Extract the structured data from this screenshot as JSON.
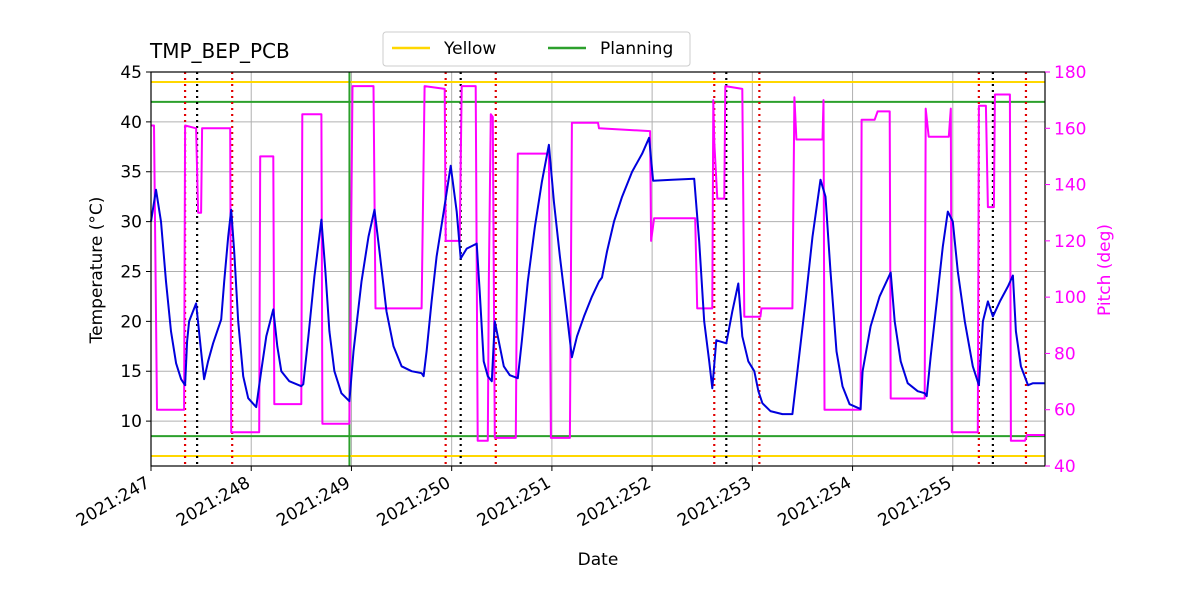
{
  "chart_data": {
    "type": "line",
    "title": "TMP_BEP_PCB",
    "xlabel": "Date",
    "ylabel": "Temperature (°C)",
    "y2label": "Pitch (deg)",
    "xlim": [
      247.0,
      255.92
    ],
    "ylim": [
      5.5,
      45
    ],
    "y2lim": [
      40,
      180
    ],
    "grid": true,
    "legend_placement": "top-center",
    "x_ticks": [
      {
        "value": 247,
        "label": "2021:247"
      },
      {
        "value": 248,
        "label": "2021:248"
      },
      {
        "value": 249,
        "label": "2021:249"
      },
      {
        "value": 250,
        "label": "2021:250"
      },
      {
        "value": 251,
        "label": "2021:251"
      },
      {
        "value": 252,
        "label": "2021:252"
      },
      {
        "value": 253,
        "label": "2021:253"
      },
      {
        "value": 254,
        "label": "2021:254"
      },
      {
        "value": 255,
        "label": "2021:255"
      }
    ],
    "y_ticks": [
      10,
      15,
      20,
      25,
      30,
      35,
      40,
      45
    ],
    "y2_ticks": [
      40,
      60,
      80,
      100,
      120,
      140,
      160,
      180
    ],
    "limit_lines": [
      {
        "name": "Yellow",
        "values": [
          6.5,
          44.0
        ],
        "color": "#ffd700"
      },
      {
        "name": "Planning",
        "values": [
          8.5,
          42.0
        ],
        "color": "#2ca02c"
      }
    ],
    "planning_vline": {
      "x": 248.98,
      "color": "#2ca02c"
    },
    "red_dotted_lines": [
      247.34,
      247.81,
      249.94,
      250.44,
      252.62,
      253.07,
      255.26,
      255.73
    ],
    "black_dotted_lines": [
      247.46,
      250.09,
      252.74,
      255.4
    ],
    "series": [
      {
        "name": "TMP_BEP_PCB",
        "axis": "left",
        "color": "#0000dd",
        "points": [
          [
            247.0,
            30.0
          ],
          [
            247.05,
            33.2
          ],
          [
            247.1,
            30.0
          ],
          [
            247.15,
            24.0
          ],
          [
            247.2,
            19.0
          ],
          [
            247.25,
            15.8
          ],
          [
            247.3,
            14.2
          ],
          [
            247.34,
            13.6
          ],
          [
            247.36,
            18.0
          ],
          [
            247.38,
            20.0
          ],
          [
            247.45,
            21.8
          ],
          [
            247.5,
            17.0
          ],
          [
            247.53,
            14.2
          ],
          [
            247.57,
            16.0
          ],
          [
            247.62,
            17.8
          ],
          [
            247.7,
            20.2
          ],
          [
            247.73,
            24.0
          ],
          [
            247.77,
            28.5
          ],
          [
            247.8,
            31.2
          ],
          [
            247.83,
            27.0
          ],
          [
            247.87,
            20.0
          ],
          [
            247.92,
            14.5
          ],
          [
            247.97,
            12.3
          ],
          [
            248.05,
            11.4
          ],
          [
            248.1,
            15.0
          ],
          [
            248.15,
            18.5
          ],
          [
            248.22,
            21.2
          ],
          [
            248.26,
            17.5
          ],
          [
            248.3,
            15.0
          ],
          [
            248.38,
            14.0
          ],
          [
            248.5,
            13.5
          ],
          [
            248.52,
            13.7
          ],
          [
            248.57,
            18.5
          ],
          [
            248.63,
            24.5
          ],
          [
            248.7,
            30.2
          ],
          [
            248.74,
            25.0
          ],
          [
            248.78,
            19.0
          ],
          [
            248.83,
            15.0
          ],
          [
            248.9,
            12.8
          ],
          [
            248.98,
            12.0
          ],
          [
            249.02,
            17.0
          ],
          [
            249.1,
            24.0
          ],
          [
            249.17,
            28.5
          ],
          [
            249.23,
            31.2
          ],
          [
            249.28,
            27.0
          ],
          [
            249.35,
            21.0
          ],
          [
            249.42,
            17.5
          ],
          [
            249.5,
            15.5
          ],
          [
            249.6,
            15.0
          ],
          [
            249.7,
            14.8
          ],
          [
            249.72,
            14.5
          ],
          [
            249.75,
            17.0
          ],
          [
            249.8,
            22.0
          ],
          [
            249.85,
            26.5
          ],
          [
            249.92,
            31.0
          ],
          [
            249.99,
            35.6
          ],
          [
            250.05,
            31.0
          ],
          [
            250.09,
            26.3
          ],
          [
            250.15,
            27.3
          ],
          [
            250.25,
            27.8
          ],
          [
            250.28,
            23.0
          ],
          [
            250.32,
            16.0
          ],
          [
            250.36,
            14.5
          ],
          [
            250.4,
            14.0
          ],
          [
            250.43,
            20.0
          ],
          [
            250.47,
            18.0
          ],
          [
            250.52,
            15.5
          ],
          [
            250.58,
            14.6
          ],
          [
            250.66,
            14.3
          ],
          [
            250.7,
            18.0
          ],
          [
            250.76,
            24.0
          ],
          [
            250.83,
            29.5
          ],
          [
            250.9,
            34.0
          ],
          [
            250.97,
            37.7
          ],
          [
            251.02,
            32.0
          ],
          [
            251.08,
            26.5
          ],
          [
            251.14,
            21.5
          ],
          [
            251.2,
            16.4
          ],
          [
            251.25,
            18.5
          ],
          [
            251.32,
            20.5
          ],
          [
            251.4,
            22.5
          ],
          [
            251.47,
            24.0
          ],
          [
            251.5,
            24.4
          ],
          [
            251.55,
            27.0
          ],
          [
            251.62,
            30.0
          ],
          [
            251.7,
            32.5
          ],
          [
            251.8,
            35.0
          ],
          [
            251.9,
            36.8
          ],
          [
            251.97,
            38.4
          ],
          [
            252.01,
            34.1
          ],
          [
            252.2,
            34.2
          ],
          [
            252.42,
            34.3
          ],
          [
            252.47,
            28.0
          ],
          [
            252.52,
            20.0
          ],
          [
            252.57,
            16.0
          ],
          [
            252.6,
            13.3
          ],
          [
            252.64,
            18.1
          ],
          [
            252.74,
            17.8
          ],
          [
            252.8,
            21.0
          ],
          [
            252.86,
            23.8
          ],
          [
            252.9,
            18.5
          ],
          [
            252.96,
            16.0
          ],
          [
            253.02,
            15.0
          ],
          [
            253.06,
            13.0
          ],
          [
            253.1,
            11.8
          ],
          [
            253.18,
            11.0
          ],
          [
            253.3,
            10.7
          ],
          [
            253.4,
            10.7
          ],
          [
            253.45,
            15.0
          ],
          [
            253.53,
            22.0
          ],
          [
            253.6,
            28.5
          ],
          [
            253.68,
            34.2
          ],
          [
            253.73,
            32.5
          ],
          [
            253.78,
            25.0
          ],
          [
            253.84,
            17.0
          ],
          [
            253.9,
            13.5
          ],
          [
            253.97,
            11.7
          ],
          [
            254.08,
            11.2
          ],
          [
            254.1,
            15.0
          ],
          [
            254.18,
            19.5
          ],
          [
            254.27,
            22.5
          ],
          [
            254.38,
            24.9
          ],
          [
            254.42,
            20.0
          ],
          [
            254.48,
            16.0
          ],
          [
            254.55,
            13.8
          ],
          [
            254.65,
            13.0
          ],
          [
            254.72,
            12.8
          ],
          [
            254.74,
            12.5
          ],
          [
            254.78,
            16.5
          ],
          [
            254.84,
            22.0
          ],
          [
            254.9,
            27.5
          ],
          [
            254.95,
            31.0
          ],
          [
            255.0,
            30.0
          ],
          [
            255.05,
            25.0
          ],
          [
            255.12,
            20.0
          ],
          [
            255.2,
            15.5
          ],
          [
            255.26,
            13.6
          ],
          [
            255.3,
            20.0
          ],
          [
            255.35,
            22.0
          ],
          [
            255.4,
            20.5
          ],
          [
            255.47,
            22.0
          ],
          [
            255.55,
            23.5
          ],
          [
            255.6,
            24.6
          ],
          [
            255.63,
            19.0
          ],
          [
            255.68,
            15.5
          ],
          [
            255.75,
            13.6
          ],
          [
            255.8,
            13.8
          ],
          [
            255.92,
            13.8
          ]
        ]
      },
      {
        "name": "Pitch",
        "axis": "right",
        "color": "#ff00ff",
        "points": [
          [
            247.0,
            161
          ],
          [
            247.03,
            161
          ],
          [
            247.06,
            60
          ],
          [
            247.33,
            60
          ],
          [
            247.34,
            161
          ],
          [
            247.45,
            160
          ],
          [
            247.47,
            130
          ],
          [
            247.5,
            130
          ],
          [
            247.51,
            160
          ],
          [
            247.79,
            160
          ],
          [
            247.8,
            52
          ],
          [
            248.08,
            52
          ],
          [
            248.09,
            150
          ],
          [
            248.22,
            150
          ],
          [
            248.23,
            62
          ],
          [
            248.5,
            62
          ],
          [
            248.51,
            165
          ],
          [
            248.7,
            165
          ],
          [
            248.71,
            55
          ],
          [
            248.98,
            55
          ],
          [
            249.01,
            175
          ],
          [
            249.22,
            175
          ],
          [
            249.24,
            96
          ],
          [
            249.7,
            96
          ],
          [
            249.73,
            175
          ],
          [
            249.93,
            174
          ],
          [
            249.94,
            120
          ],
          [
            250.08,
            120
          ],
          [
            250.1,
            175
          ],
          [
            250.24,
            175
          ],
          [
            250.26,
            49
          ],
          [
            250.36,
            49
          ],
          [
            250.37,
            105
          ],
          [
            250.39,
            165
          ],
          [
            250.41,
            164
          ],
          [
            250.43,
            50
          ],
          [
            250.64,
            50
          ],
          [
            250.66,
            151
          ],
          [
            250.97,
            151
          ],
          [
            250.99,
            50
          ],
          [
            251.18,
            50
          ],
          [
            251.2,
            162
          ],
          [
            251.46,
            162
          ],
          [
            251.47,
            160
          ],
          [
            251.98,
            159
          ],
          [
            251.99,
            120
          ],
          [
            252.02,
            128
          ],
          [
            252.43,
            128
          ],
          [
            252.45,
            96
          ],
          [
            252.6,
            96
          ],
          [
            252.61,
            170
          ],
          [
            252.62,
            155
          ],
          [
            252.65,
            135
          ],
          [
            252.72,
            135
          ],
          [
            252.73,
            175
          ],
          [
            252.9,
            174
          ],
          [
            252.92,
            93
          ],
          [
            253.08,
            93
          ],
          [
            253.09,
            96
          ],
          [
            253.4,
            96
          ],
          [
            253.42,
            171
          ],
          [
            253.44,
            156
          ],
          [
            253.7,
            156
          ],
          [
            253.71,
            170
          ],
          [
            253.72,
            60
          ],
          [
            254.08,
            60
          ],
          [
            254.09,
            163
          ],
          [
            254.22,
            163
          ],
          [
            254.25,
            166
          ],
          [
            254.37,
            166
          ],
          [
            254.38,
            64
          ],
          [
            254.72,
            64
          ],
          [
            254.73,
            167
          ],
          [
            254.76,
            157
          ],
          [
            254.96,
            157
          ],
          [
            254.98,
            167
          ],
          [
            254.99,
            52
          ],
          [
            255.25,
            52
          ],
          [
            255.26,
            168
          ],
          [
            255.33,
            168
          ],
          [
            255.35,
            132
          ],
          [
            255.41,
            132
          ],
          [
            255.42,
            172
          ],
          [
            255.57,
            172
          ],
          [
            255.58,
            49
          ],
          [
            255.72,
            49
          ],
          [
            255.74,
            51
          ],
          [
            255.92,
            51
          ]
        ]
      }
    ]
  },
  "legend": {
    "items": [
      {
        "label": "Yellow",
        "color": "#ffd700"
      },
      {
        "label": "Planning",
        "color": "#2ca02c"
      }
    ]
  }
}
